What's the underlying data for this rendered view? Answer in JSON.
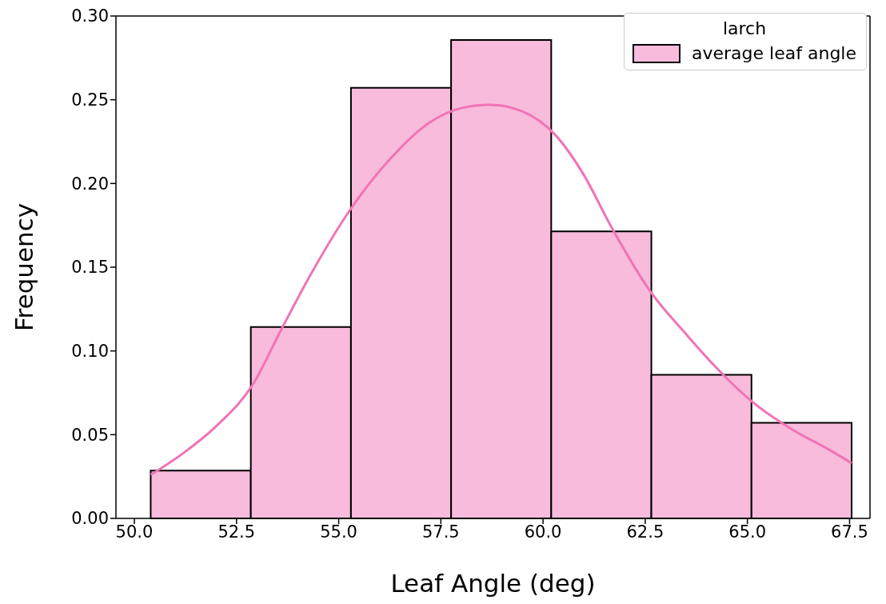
{
  "chart_data": {
    "type": "histogram",
    "xlabel": "Leaf Angle (deg)",
    "ylabel": "Frequency",
    "legend_title": "larch",
    "legend": "top right",
    "xlim": [
      49.55,
      68.0
    ],
    "xticks": [
      {
        "value": 50,
        "label": "50.0"
      },
      52.5,
      {
        "value": 55,
        "label": "55.0"
      },
      57.5,
      {
        "value": 60,
        "label": "60.0"
      },
      62.5,
      {
        "value": 65,
        "label": "65.0"
      },
      67.5
    ],
    "ylim": [
      0,
      0.3
    ],
    "yticks": [
      {
        "value": 0,
        "label": "0.00"
      },
      0.05,
      {
        "value": 0.1,
        "label": "0.10"
      },
      0.15,
      {
        "value": 0.2,
        "label": "0.20"
      },
      0.25,
      {
        "value": 0.3,
        "label": "0.30"
      }
    ],
    "series": [
      {
        "name": "average leaf angle",
        "color": "#f8bbdc",
        "bins": [
          50.4,
          52.85,
          55.3,
          57.75,
          60.2,
          62.65,
          65.1,
          67.55
        ],
        "values": [
          0.0286,
          0.1143,
          0.2571,
          0.2857,
          0.1714,
          0.0857,
          0.0571
        ]
      },
      {
        "type": "line",
        "color": "#f173b4",
        "x": [
          50.4,
          51.2,
          52.0,
          52.9,
          53.6,
          54.3,
          55.3,
          56.2,
          57.2,
          58.0,
          58.7,
          59.5,
          60.3,
          61.0,
          61.65,
          62.67,
          63.5,
          64.2,
          65.1,
          66.1,
          67.0,
          67.55
        ],
        "values": [
          0.026,
          0.039,
          0.055,
          0.08,
          0.113,
          0.145,
          0.185,
          0.213,
          0.236,
          0.245,
          0.247,
          0.243,
          0.229,
          0.205,
          0.175,
          0.134,
          0.11,
          0.091,
          0.07,
          0.053,
          0.041,
          0.033
        ]
      }
    ]
  }
}
